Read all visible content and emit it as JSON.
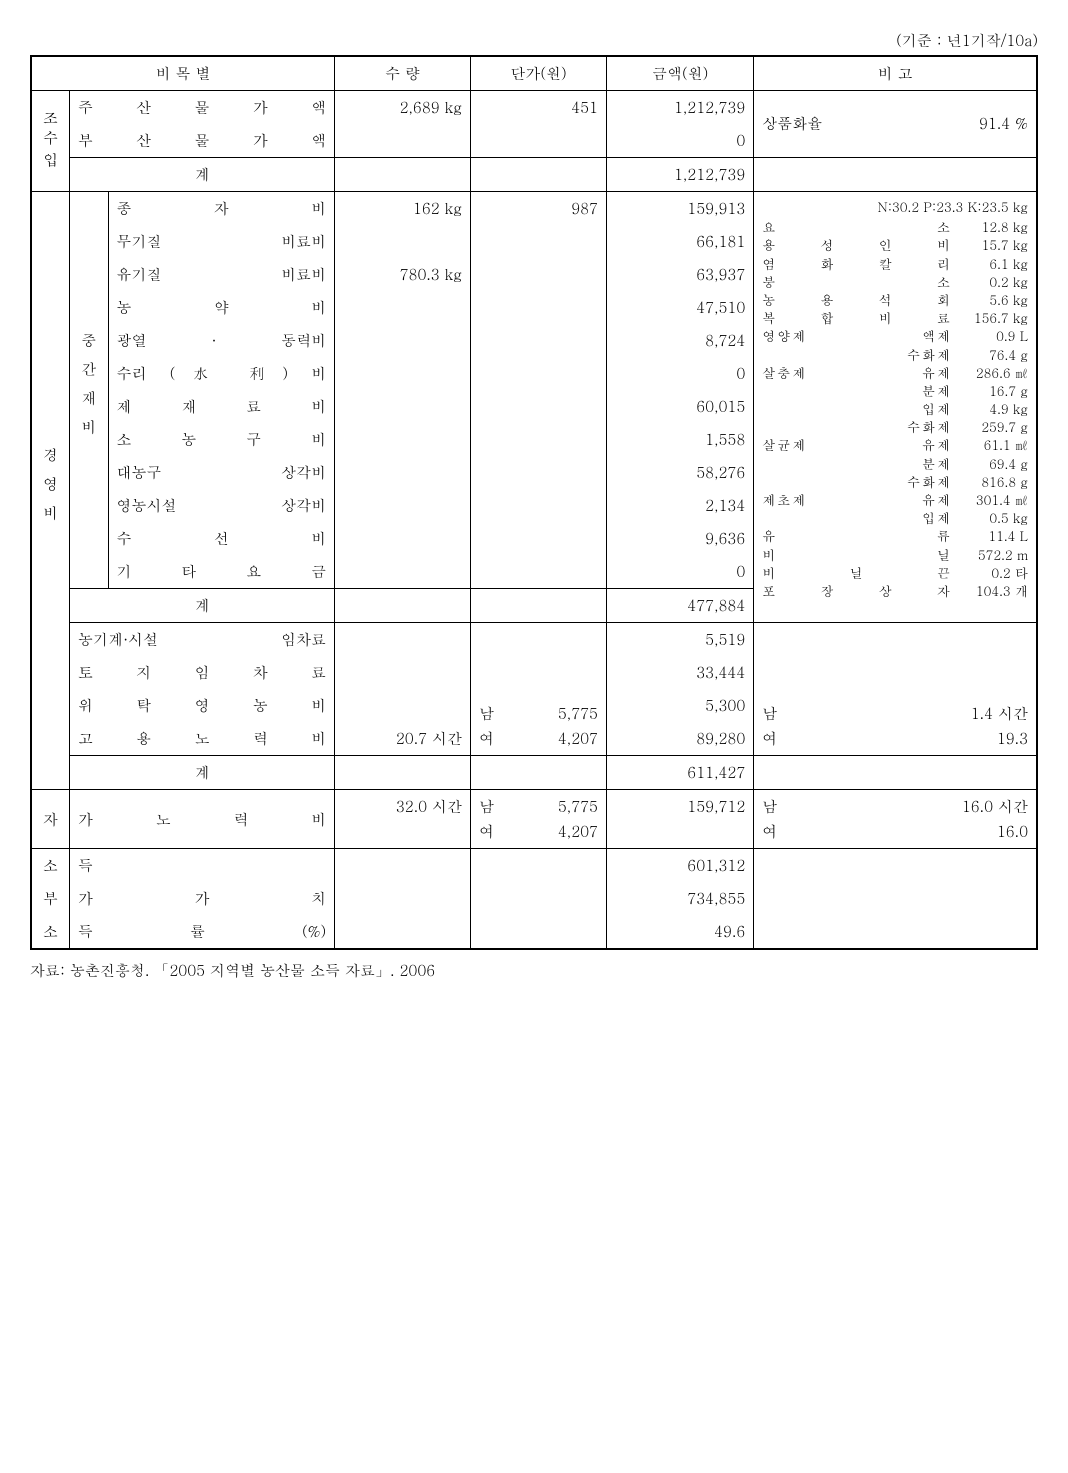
{
  "unit_note": "(기준 : 년1기작/10a)",
  "header": {
    "item": "비     목     별",
    "qty": "수  량",
    "unit_price": "단가(원)",
    "amount": "금액(원)",
    "remark": "비       고"
  },
  "rev": {
    "cat": "조수입",
    "main": {
      "label": "주   산   물   가   액",
      "qty": "2,689 kg",
      "unit": "451",
      "amount": "1,212,739"
    },
    "by": {
      "label": "부   산   물   가   액",
      "amount": "0"
    },
    "rate": {
      "label": "상품화율",
      "value": "91.4 %"
    },
    "subtotal": {
      "label": "계",
      "amount": "1,212,739"
    }
  },
  "cost": {
    "cat1": "경영비",
    "mid": {
      "cat": "중간재비",
      "items": [
        {
          "label": "종       자       비",
          "qty": "162 kg",
          "unit": "987",
          "amount": "159,913"
        },
        {
          "label": "무기질      비료비",
          "amount": "66,181"
        },
        {
          "label": "유기질      비료비",
          "qty": "780.3 kg",
          "amount": "63,937"
        },
        {
          "label": "농       약       비",
          "amount": "47,510"
        },
        {
          "label": "광열  ·  동력비",
          "amount": "8,724"
        },
        {
          "label": "수리  (水  利)  비",
          "amount": "0"
        },
        {
          "label": "제   재   료   비",
          "amount": "60,015"
        },
        {
          "label": "소   농   구   비",
          "amount": "1,558"
        },
        {
          "label": "대농구     상각비",
          "amount": "58,276"
        },
        {
          "label": "영농시설   상각비",
          "amount": "2,134"
        },
        {
          "label": "수       선       비",
          "amount": "9,636"
        },
        {
          "label": "기   타   요   금",
          "amount": "0"
        }
      ],
      "subtotal": {
        "label": "계",
        "amount": "477,884"
      }
    },
    "other": [
      {
        "label": "농기계·시설  임차료",
        "amount": "5,519"
      },
      {
        "label": "토   지   임   차   료",
        "amount": "33,444"
      },
      {
        "label": "위   탁   영   농   비",
        "amount": "5,300"
      },
      {
        "label": "고   용   노   력   비",
        "qty": "20.7 시간",
        "unit": [
          [
            "남",
            "5,775"
          ],
          [
            "여",
            "4,207"
          ]
        ],
        "amount": "89,280",
        "remark": [
          [
            "남",
            "1.4 시간"
          ],
          [
            "여",
            "19.3"
          ]
        ]
      }
    ],
    "total": {
      "label": "계",
      "amount": "611,427"
    }
  },
  "self_labor": {
    "cat": "자",
    "label": "가   노   력   비",
    "qty": "32.0 시간",
    "unit": [
      [
        "남",
        "5,775"
      ],
      [
        "여",
        "4,207"
      ]
    ],
    "amount": "159,712",
    "remark": [
      [
        "남",
        "16.0 시간"
      ],
      [
        "여",
        "16.0"
      ]
    ]
  },
  "income": {
    "rows": [
      {
        "cat": "소",
        "label": "득",
        "amount": "601,312"
      },
      {
        "cat": "부",
        "label": "가   가   치",
        "amount": "734,855"
      },
      {
        "cat": "소",
        "label": "득   률   (%)",
        "amount": "49.6"
      }
    ]
  },
  "notes": {
    "header": "N:30.2  P:23.3  K:23.5 kg",
    "lines": [
      [
        "요         소",
        "12.8 kg"
      ],
      [
        "용 성 인 비",
        "15.7 kg"
      ],
      [
        "염 화 칼 리",
        "6.1 kg"
      ],
      [
        "붕       소",
        "0.2 kg"
      ],
      [
        "농 용 석 회",
        "5.6 kg"
      ],
      [
        "복 합 비 료",
        "156.7 kg"
      ],
      [
        "영양제  액제",
        "0.9 L"
      ],
      [
        "　　　수화제",
        "76.4 g"
      ],
      [
        "살충제  유제",
        "286.6 ㎖"
      ],
      [
        "　　　　분제",
        "16.7 g"
      ],
      [
        "　　　　입제",
        "4.9 kg"
      ],
      [
        "　　　수화제",
        "259.7 g"
      ],
      [
        "살균제  유제",
        "61.1 ㎖"
      ],
      [
        "　　　　분제",
        "69.4 g"
      ],
      [
        "　　　수화제",
        "816.8 g"
      ],
      [
        "제초제  유제",
        "301.4 ㎖"
      ],
      [
        "　　　　입제",
        "0.5 kg"
      ],
      [
        "유       류",
        "11.4 L"
      ],
      [
        "비       닐",
        "572.2 m"
      ],
      [
        "비   닐   끈",
        "0.2 타"
      ],
      [
        "포 장 상 자",
        "104.3 개"
      ]
    ]
  },
  "footer": "자료: 농촌진흥청. 「2005 지역별 농산물 소득 자료」. 2006"
}
